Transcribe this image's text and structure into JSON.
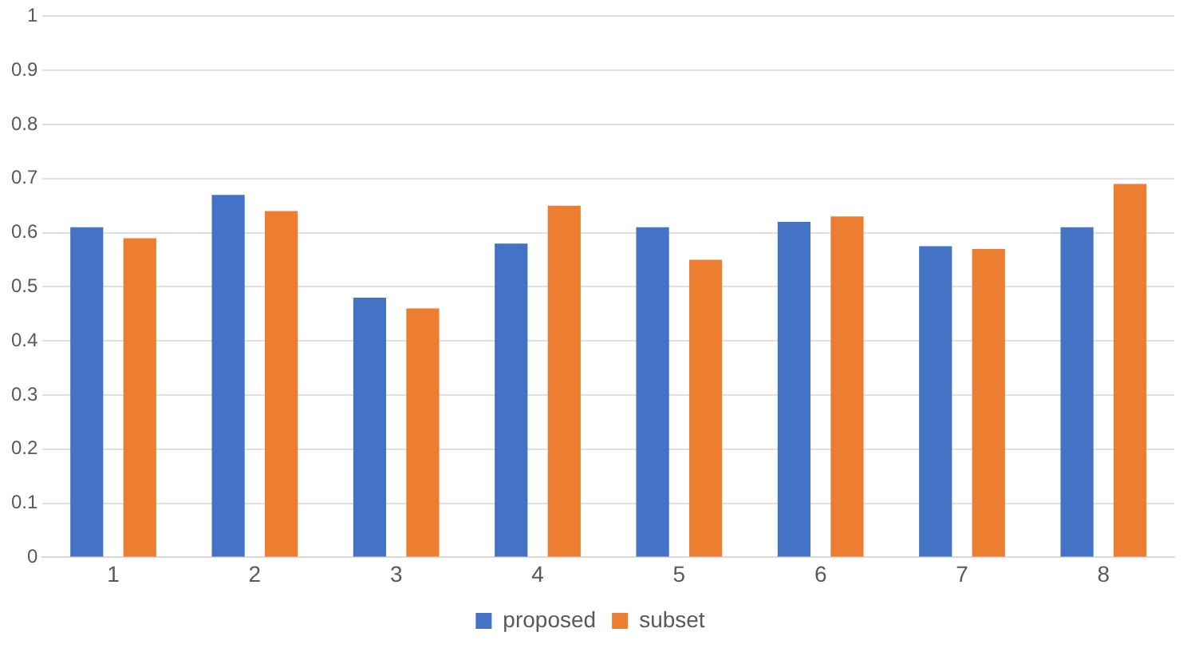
{
  "chart_data": {
    "type": "bar",
    "categories": [
      "1",
      "2",
      "3",
      "4",
      "5",
      "6",
      "7",
      "8"
    ],
    "series": [
      {
        "name": "proposed",
        "color": "#4472c4",
        "values": [
          0.61,
          0.67,
          0.48,
          0.58,
          0.61,
          0.62,
          0.575,
          0.61
        ]
      },
      {
        "name": "subset",
        "color": "#ed7d31",
        "values": [
          0.59,
          0.64,
          0.46,
          0.65,
          0.55,
          0.63,
          0.57,
          0.69
        ]
      }
    ],
    "ylim": [
      0,
      1
    ],
    "yticks": [
      0,
      0.1,
      0.2,
      0.3,
      0.4,
      0.5,
      0.6,
      0.7,
      0.8,
      0.9,
      1
    ],
    "grid": "y",
    "legend": "bottom"
  }
}
